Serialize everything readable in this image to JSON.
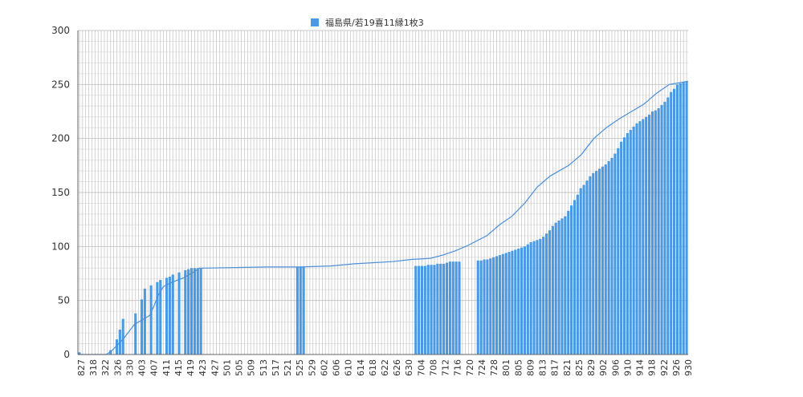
{
  "chart_data": {
    "type": "bar",
    "legend": {
      "label": "福島県/若19喜11縁1枚3",
      "position": "top-center"
    },
    "colors": {
      "bar": "#4a99e2",
      "line": "#4a8fd8",
      "grid": "#c8c8c8",
      "axis": "#666666"
    },
    "ylim": [
      0,
      300
    ],
    "yticks": [
      0,
      50,
      100,
      150,
      200,
      250,
      300
    ],
    "xtick_labels": [
      "827",
      "318",
      "322",
      "326",
      "330",
      "403",
      "407",
      "411",
      "415",
      "419",
      "423",
      "427",
      "501",
      "505",
      "509",
      "513",
      "517",
      "521",
      "525",
      "529",
      "602",
      "606",
      "610",
      "614",
      "618",
      "622",
      "626",
      "630",
      "704",
      "708",
      "712",
      "716",
      "720",
      "724",
      "728",
      "801",
      "805",
      "809",
      "813",
      "817",
      "821",
      "825",
      "829",
      "902",
      "906",
      "910",
      "914",
      "918",
      "922",
      "926",
      "930"
    ],
    "cumulative_line_anchors": [
      [
        0,
        0
      ],
      [
        4.5,
        0
      ],
      [
        5.3,
        3
      ],
      [
        7.3,
        15
      ],
      [
        9,
        28
      ],
      [
        11.4,
        36
      ],
      [
        12.1,
        45
      ],
      [
        12.8,
        55
      ],
      [
        13.6,
        63
      ],
      [
        15,
        67
      ],
      [
        16.8,
        71
      ],
      [
        18.6,
        77
      ],
      [
        19.3,
        80
      ],
      [
        20,
        80
      ],
      [
        30,
        81
      ],
      [
        35,
        81
      ],
      [
        40.2,
        82
      ],
      [
        44,
        84
      ],
      [
        50,
        86
      ],
      [
        53,
        88
      ],
      [
        56,
        89
      ],
      [
        58,
        92
      ],
      [
        60,
        96
      ],
      [
        62,
        101
      ],
      [
        63,
        104
      ],
      [
        65,
        110
      ],
      [
        67,
        120
      ],
      [
        69,
        128
      ],
      [
        71,
        140
      ],
      [
        73,
        155
      ],
      [
        75,
        165
      ],
      [
        78,
        175
      ],
      [
        80,
        185
      ],
      [
        82,
        200
      ],
      [
        84,
        210
      ],
      [
        86,
        218
      ],
      [
        88,
        225
      ],
      [
        90,
        232
      ],
      [
        92,
        242
      ],
      [
        94,
        250
      ],
      [
        96,
        252
      ],
      [
        97,
        253
      ]
    ],
    "bars": [
      [
        0,
        2
      ],
      [
        10,
        4
      ],
      [
        12,
        14
      ],
      [
        13,
        23
      ],
      [
        14,
        33
      ],
      [
        18,
        38
      ],
      [
        20,
        51
      ],
      [
        21,
        61
      ],
      [
        23,
        64
      ],
      [
        25,
        67
      ],
      [
        26,
        69
      ],
      [
        28,
        71
      ],
      [
        29,
        72
      ],
      [
        30,
        74
      ],
      [
        32,
        76
      ],
      [
        34,
        78
      ],
      [
        35,
        79
      ],
      [
        36,
        80
      ],
      [
        37,
        80
      ],
      [
        38,
        80
      ],
      [
        39,
        80
      ],
      [
        70,
        81
      ],
      [
        71,
        81
      ],
      [
        72,
        81
      ],
      [
        108,
        82
      ],
      [
        109,
        82
      ],
      [
        110,
        82
      ],
      [
        111,
        82
      ],
      [
        112,
        83
      ],
      [
        113,
        83
      ],
      [
        114,
        83
      ],
      [
        115,
        84
      ],
      [
        116,
        84
      ],
      [
        117,
        84
      ],
      [
        118,
        85
      ],
      [
        119,
        86
      ],
      [
        120,
        86
      ],
      [
        121,
        86
      ],
      [
        122,
        86
      ],
      [
        128,
        87
      ],
      [
        129,
        87
      ],
      [
        130,
        88
      ],
      [
        131,
        88
      ],
      [
        132,
        89
      ],
      [
        133,
        90
      ],
      [
        134,
        91
      ],
      [
        135,
        92
      ],
      [
        136,
        93
      ],
      [
        137,
        94
      ],
      [
        138,
        95
      ],
      [
        139,
        96
      ],
      [
        140,
        97
      ],
      [
        141,
        98
      ],
      [
        142,
        99
      ],
      [
        143,
        100
      ],
      [
        144,
        102
      ],
      [
        145,
        104
      ],
      [
        146,
        105
      ],
      [
        147,
        106
      ],
      [
        148,
        107
      ],
      [
        149,
        109
      ],
      [
        150,
        112
      ],
      [
        151,
        115
      ],
      [
        152,
        119
      ],
      [
        153,
        122
      ],
      [
        154,
        124
      ],
      [
        155,
        126
      ],
      [
        156,
        128
      ],
      [
        157,
        133
      ],
      [
        158,
        138
      ],
      [
        159,
        143
      ],
      [
        160,
        148
      ],
      [
        161,
        154
      ],
      [
        162,
        157
      ],
      [
        163,
        161
      ],
      [
        164,
        165
      ],
      [
        165,
        168
      ],
      [
        166,
        170
      ],
      [
        167,
        172
      ],
      [
        168,
        174
      ],
      [
        169,
        176
      ],
      [
        170,
        179
      ],
      [
        171,
        182
      ],
      [
        172,
        186
      ],
      [
        173,
        191
      ],
      [
        174,
        197
      ],
      [
        175,
        201
      ],
      [
        176,
        205
      ],
      [
        177,
        208
      ],
      [
        178,
        211
      ],
      [
        179,
        214
      ],
      [
        180,
        216
      ],
      [
        181,
        218
      ],
      [
        182,
        220
      ],
      [
        183,
        222
      ],
      [
        184,
        225
      ],
      [
        185,
        226
      ],
      [
        186,
        228
      ],
      [
        187,
        231
      ],
      [
        188,
        234
      ],
      [
        189,
        238
      ],
      [
        190,
        243
      ],
      [
        191,
        246
      ],
      [
        192,
        250
      ],
      [
        193,
        251
      ],
      [
        194,
        252
      ],
      [
        195,
        253
      ]
    ]
  }
}
